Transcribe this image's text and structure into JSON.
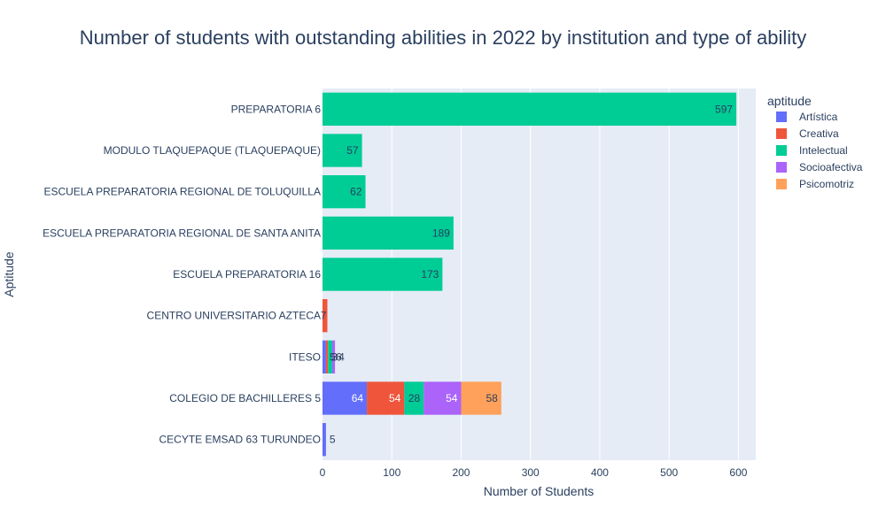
{
  "chart_data": {
    "type": "bar",
    "orientation": "horizontal",
    "barmode": "stack",
    "title": "Number of students with outstanding abilities in 2022 by institution and type of ability",
    "xlabel": "Number of Students",
    "ylabel": "Aptitude",
    "xlim": [
      0,
      625
    ],
    "xticks": [
      "0",
      "100",
      "200",
      "300",
      "400",
      "500",
      "600"
    ],
    "grid": true,
    "legend_title": "aptitude",
    "legend_position": "right",
    "categories": [
      "PREPARATORIA 6",
      "MODULO TLAQUEPAQUE (TLAQUEPAQUE)",
      "ESCUELA PREPARATORIA REGIONAL DE TOLUQUILLA",
      "ESCUELA PREPARATORIA REGIONAL DE SANTA ANITA",
      "ESCUELA PREPARATORIA 16",
      "CENTRO UNIVERSITARIO AZTECA",
      "ITESO",
      "COLEGIO DE BACHILLERES 5",
      "CECYTE EMSAD 63 TURUNDEO"
    ],
    "series": [
      {
        "name": "Artística",
        "color": "#636efa",
        "label_color": "#ffffff",
        "values": [
          0,
          0,
          0,
          0,
          0,
          0,
          5,
          64,
          5
        ]
      },
      {
        "name": "Creativa",
        "color": "#ef553b",
        "label_color": "#ffffff",
        "values": [
          0,
          0,
          0,
          0,
          0,
          7,
          3,
          54,
          0
        ]
      },
      {
        "name": "Intelectual",
        "color": "#00cc96",
        "label_color": "#2a3f5f",
        "values": [
          597,
          57,
          62,
          189,
          173,
          0,
          6,
          28,
          0
        ]
      },
      {
        "name": "Socioafectiva",
        "color": "#ab63fa",
        "label_color": "#ffffff",
        "values": [
          0,
          0,
          0,
          0,
          0,
          0,
          4,
          54,
          0
        ]
      },
      {
        "name": "Psicomotriz",
        "color": "#ffa15a",
        "label_color": "#2a3f5f",
        "values": [
          0,
          0,
          0,
          0,
          0,
          0,
          0,
          58,
          0
        ]
      }
    ]
  }
}
